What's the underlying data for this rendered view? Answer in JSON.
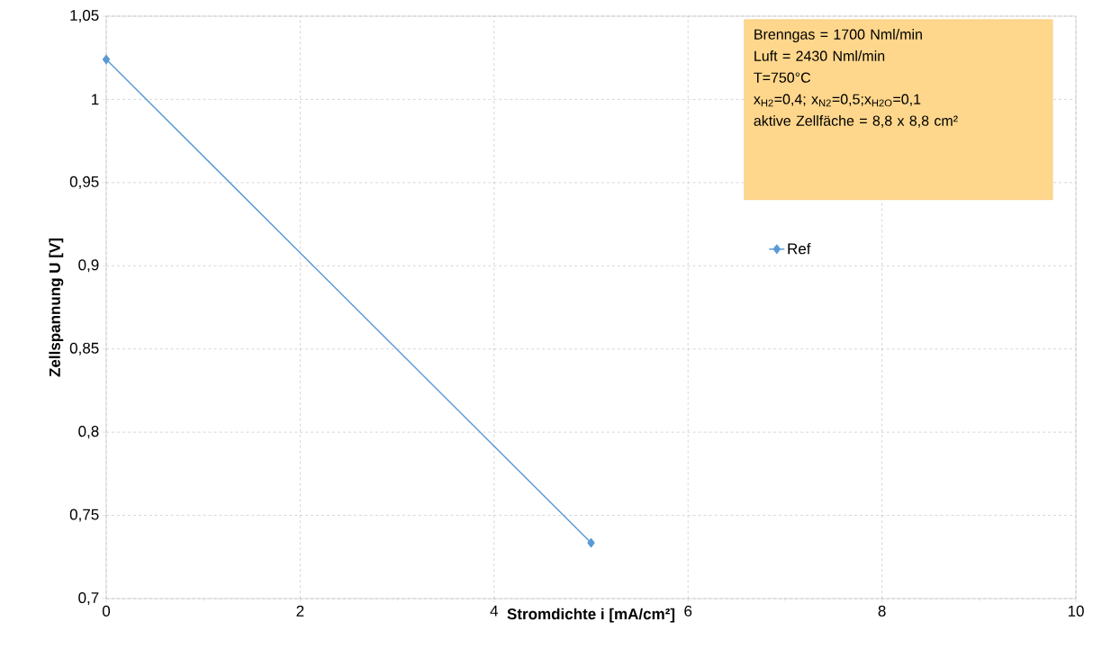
{
  "chart_data": {
    "type": "line",
    "xlabel": "Stromdichte i [mA/cm²]",
    "ylabel": "Zellspannung U [V]",
    "x": [
      0,
      5
    ],
    "series": [
      {
        "name": "Ref",
        "color": "#5b9bd5",
        "values": [
          1.024,
          0.7335
        ]
      }
    ],
    "xlim": [
      0,
      10
    ],
    "xticks": [
      0,
      2,
      4,
      6,
      8,
      10
    ],
    "ylim": [
      0.7,
      1.05
    ],
    "yticks": [
      {
        "value": 0.7,
        "label": "0,7"
      },
      {
        "value": 0.75,
        "label": "0,75"
      },
      {
        "value": 0.8,
        "label": "0,8"
      },
      {
        "value": 0.85,
        "label": "0,85"
      },
      {
        "value": 0.9,
        "label": "0,9"
      },
      {
        "value": 0.95,
        "label": "0,95"
      },
      1,
      {
        "value": 1.05,
        "label": "1,05"
      }
    ],
    "grid": true,
    "legend": "right",
    "marker": "diamond",
    "line_style": "solid",
    "annotations": [
      "Brenngas = 1700 Nml/min",
      "Luft = 2430 Nml/min",
      "T=750°C",
      "x$_{H2}$=0,4; x$_{N2}$=0,5;x$_{H2O}$=0,1",
      "aktive Zellfäche = 8,8 x 8,8 cm²"
    ]
  }
}
